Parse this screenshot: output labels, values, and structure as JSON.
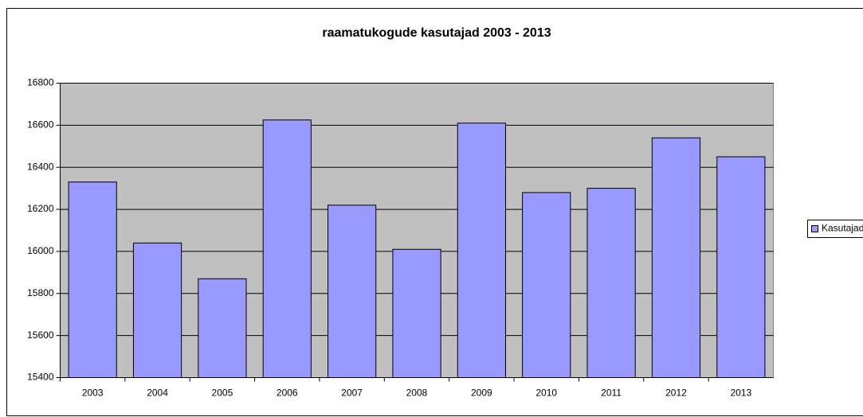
{
  "chart_data": {
    "type": "bar",
    "title": "raamatukogude kasutajad 2003 - 2013",
    "categories": [
      "2003",
      "2004",
      "2005",
      "2006",
      "2007",
      "2008",
      "2009",
      "2010",
      "2011",
      "2012",
      "2013"
    ],
    "series": [
      {
        "name": "Kasutajad",
        "color": "#9999ff",
        "values": [
          16330,
          16040,
          15870,
          16625,
          16220,
          16010,
          16610,
          16280,
          16300,
          16540,
          16450
        ]
      }
    ],
    "ylim": [
      15400,
      16800
    ],
    "yticks": [
      15400,
      15600,
      15800,
      16000,
      16200,
      16400,
      16600,
      16800
    ],
    "grid": true,
    "legend": "right"
  }
}
